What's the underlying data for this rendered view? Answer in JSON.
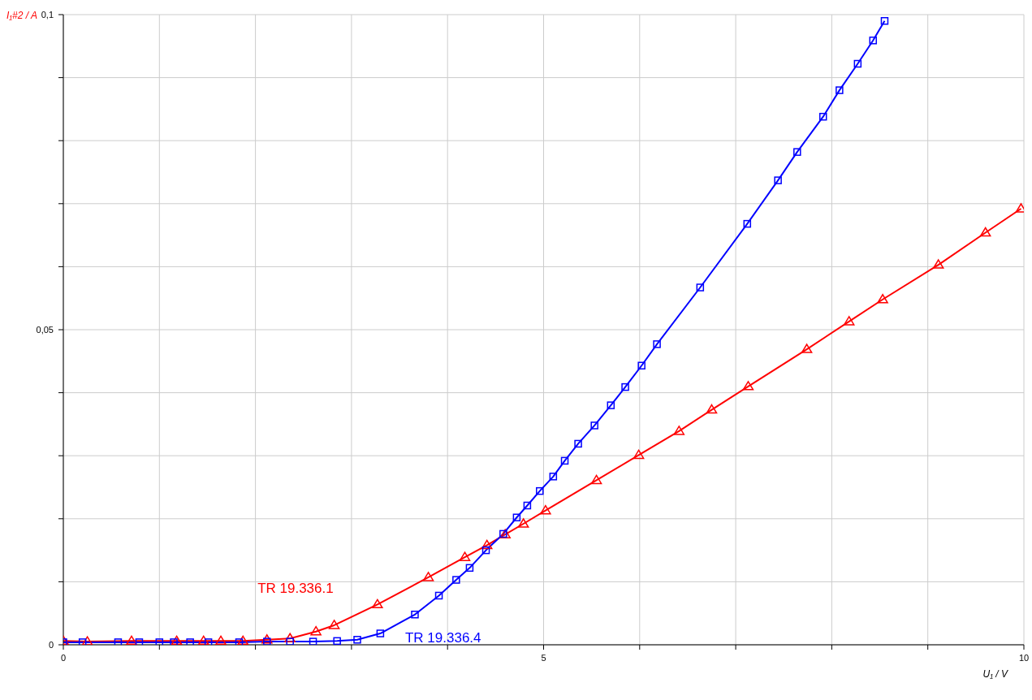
{
  "chart_data": {
    "type": "line",
    "xlabel": "U₁ / V",
    "ylabel": "I₁#2 / A",
    "xlim": [
      0,
      10
    ],
    "ylim": [
      0,
      0.1
    ],
    "xticks": [
      0,
      {
        "value": 1,
        "label": null
      },
      {
        "value": 2,
        "label": null
      },
      {
        "value": 3,
        "label": null
      },
      {
        "value": 4,
        "label": null
      },
      5,
      {
        "value": 6,
        "label": null
      },
      {
        "value": 7,
        "label": null
      },
      {
        "value": 8,
        "label": null
      },
      {
        "value": 9,
        "label": null
      },
      10
    ],
    "yticks": [
      0,
      {
        "value": 0.01,
        "label": null
      },
      {
        "value": 0.02,
        "label": null
      },
      {
        "value": 0.03,
        "label": null
      },
      {
        "value": 0.04,
        "label": null
      },
      {
        "value": 0.05,
        "label": "0,05"
      },
      {
        "value": 0.06,
        "label": null
      },
      {
        "value": 0.07,
        "label": null
      },
      {
        "value": 0.08,
        "label": null
      },
      {
        "value": 0.09,
        "label": null
      },
      {
        "value": 0.1,
        "label": "0,1"
      }
    ],
    "grid": true,
    "line_style": "solid",
    "series": [
      {
        "name": "TR 19.336.1",
        "color": "#ff0000",
        "marker": "triangle",
        "x": [
          0,
          0.25,
          0.71,
          1.18,
          1.46,
          1.64,
          1.87,
          2.12,
          2.36,
          2.63,
          2.82,
          3.27,
          3.8,
          4.18,
          4.41,
          4.6,
          4.79,
          5.02,
          5.55,
          5.99,
          6.41,
          6.75,
          7.13,
          7.74,
          8.18,
          8.53,
          9.11,
          9.6,
          9.97
        ],
        "values": [
          0.0006,
          0.0005,
          0.0006,
          0.0006,
          0.0006,
          0.0006,
          0.0006,
          0.0008,
          0.001,
          0.0021,
          0.0031,
          0.0064,
          0.0107,
          0.0139,
          0.0158,
          0.0175,
          0.0192,
          0.0213,
          0.0261,
          0.0301,
          0.0339,
          0.0373,
          0.041,
          0.0469,
          0.0513,
          0.0548,
          0.0603,
          0.0654,
          0.0692
        ]
      },
      {
        "name": "TR 19.336.4",
        "color": "#0000ff",
        "marker": "square",
        "x": [
          0,
          0.2,
          0.57,
          0.79,
          1,
          1.15,
          1.32,
          1.51,
          1.83,
          2.12,
          2.36,
          2.6,
          2.85,
          3.06,
          3.3,
          3.66,
          3.91,
          4.09,
          4.23,
          4.4,
          4.58,
          4.72,
          4.83,
          4.96,
          5.1,
          5.22,
          5.36,
          5.53,
          5.7,
          5.85,
          6.02,
          6.18,
          6.63,
          7.12,
          7.44,
          7.64,
          7.91,
          8.08,
          8.27,
          8.43,
          8.55
        ],
        "values": [
          0.0004,
          0.0004,
          0.0004,
          0.0004,
          0.0004,
          0.0004,
          0.0004,
          0.0004,
          0.0004,
          0.0005,
          0.0005,
          0.0005,
          0.0006,
          0.0008,
          0.0018,
          0.0048,
          0.0078,
          0.0103,
          0.0122,
          0.015,
          0.0176,
          0.0202,
          0.0221,
          0.0244,
          0.0267,
          0.0292,
          0.0319,
          0.0348,
          0.038,
          0.0409,
          0.0443,
          0.0477,
          0.0567,
          0.0668,
          0.0737,
          0.0782,
          0.0838,
          0.088,
          0.0922,
          0.0959,
          0.099
        ]
      }
    ]
  }
}
